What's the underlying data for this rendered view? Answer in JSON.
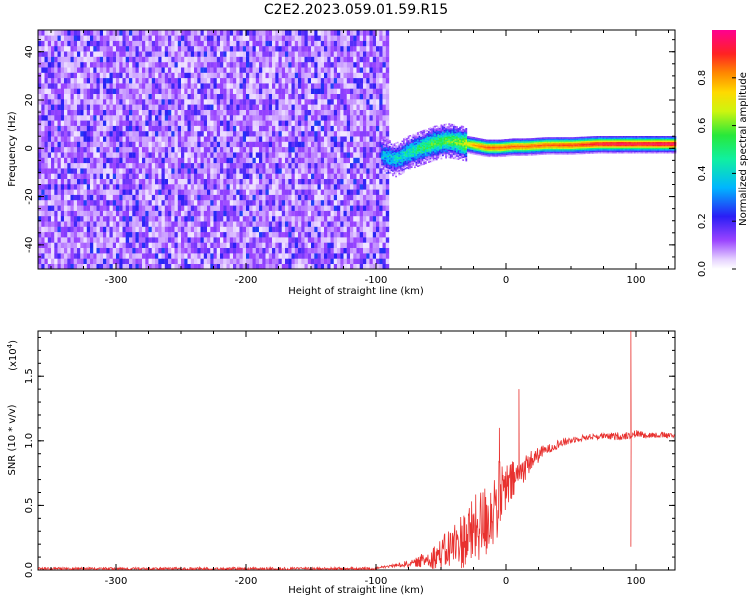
{
  "title": "C2E2.2023.059.01.59.R15",
  "colors": {
    "axis": "#000000",
    "snr_line": "#e8312f",
    "background": "#ffffff"
  },
  "chart_data": [
    {
      "type": "heatmap",
      "xlabel": "Height of straight line (km)",
      "ylabel": "Frequency (Hz)",
      "xlim": [
        -360,
        130
      ],
      "ylim": [
        -50,
        49
      ],
      "x_ticks": [
        "-300",
        "-200",
        "-100",
        "0",
        "100"
      ],
      "x_tick_values": [
        -300,
        -200,
        -100,
        0,
        100
      ],
      "y_ticks": [
        "-40",
        "-20",
        "0",
        "20",
        "40"
      ],
      "y_tick_values": [
        -40,
        -20,
        0,
        20,
        40
      ],
      "colorbar": {
        "label": "Normalized spectral amplitude",
        "range": [
          0,
          1
        ],
        "ticks": [
          "0.0",
          "0.2",
          "0.4",
          "0.6",
          "0.8"
        ],
        "tick_values": [
          0.0,
          0.2,
          0.4,
          0.6,
          0.8
        ],
        "colormap": "rainbow (white → purple → blue → cyan → green → yellow → orange → red → magenta)"
      },
      "noise_region": {
        "x_range": [
          -360,
          -92
        ],
        "freq_range": [
          -50,
          49
        ],
        "amplitude": "0.05-0.25"
      },
      "signal_trace": {
        "x": [
          -95,
          -85,
          -75,
          -65,
          -55,
          -45,
          -35,
          -25,
          -15,
          -5,
          5,
          15,
          30,
          50,
          70,
          90,
          100,
          115,
          130
        ],
        "freq": [
          -3,
          -5,
          -2,
          0,
          2,
          3,
          2,
          1,
          0,
          0,
          0.5,
          0.5,
          1,
          1,
          1.5,
          1.5,
          1.5,
          1.5,
          1.5
        ],
        "amplitude": [
          0.35,
          0.4,
          0.45,
          0.5,
          0.55,
          0.55,
          0.6,
          0.8,
          0.85,
          0.85,
          0.85,
          0.85,
          0.85,
          0.87,
          0.92,
          0.95,
          0.93,
          0.95,
          0.95
        ]
      }
    },
    {
      "type": "line",
      "xlabel": "Height of straight line (km)",
      "ylabel": "SNR (10 * v/v)",
      "y_multiplier_label": "(x10",
      "y_multiplier_exp": "4",
      "xlim": [
        -360,
        130
      ],
      "ylim": [
        0,
        1.85
      ],
      "x_ticks": [
        "-300",
        "-200",
        "-100",
        "0",
        "100"
      ],
      "x_tick_values": [
        -300,
        -200,
        -100,
        0,
        100
      ],
      "y_ticks": [
        "0.0",
        "0.5",
        "1.0",
        "1.5"
      ],
      "y_tick_values": [
        0.0,
        0.5,
        1.0,
        1.5
      ],
      "series": [
        {
          "x": [
            -360,
            -200,
            -100,
            -70,
            -50,
            -30,
            -15,
            -5,
            0,
            5,
            10,
            20,
            30,
            40,
            50,
            60,
            70,
            80,
            90,
            94,
            95,
            96,
            97,
            100,
            110,
            120,
            130
          ],
          "y": [
            0.01,
            0.01,
            0.01,
            0.05,
            0.12,
            0.25,
            0.38,
            0.55,
            0.62,
            0.68,
            0.74,
            0.85,
            0.92,
            0.97,
            1.0,
            1.02,
            1.03,
            1.03,
            1.03,
            1.04,
            0.18,
            1.85,
            1.04,
            1.05,
            1.04,
            1.04,
            1.03
          ],
          "noise_envelope": {
            "x": [
              -100,
              -70,
              -50,
              -30,
              -15,
              -5,
              0,
              10,
              30,
              60,
              90,
              130
            ],
            "amplitude": [
              0.0,
              0.03,
              0.12,
              0.25,
              0.3,
              0.3,
              0.2,
              0.12,
              0.04,
              0.02,
              0.03,
              0.02
            ]
          },
          "spikes": [
            {
              "x": 10,
              "y": 1.4
            },
            {
              "x": -5,
              "y": 1.1
            },
            {
              "x": 96,
              "y": 1.85
            },
            {
              "x": 96,
              "y": 0.18
            }
          ]
        }
      ]
    }
  ]
}
